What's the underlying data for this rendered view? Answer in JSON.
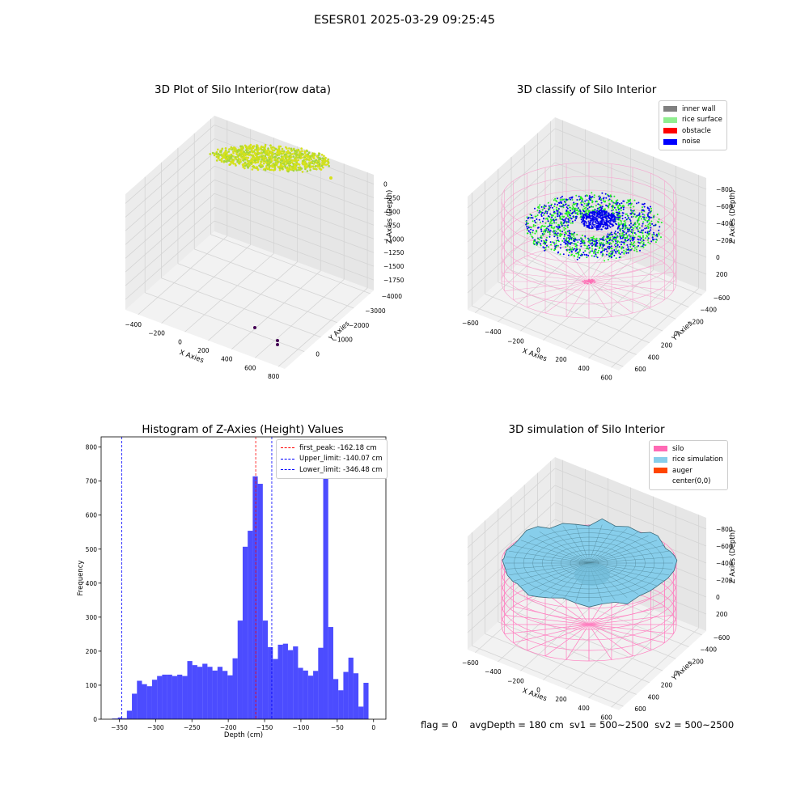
{
  "figure": {
    "title": "ESESR01 2025-03-29 09:25:45",
    "footer": "flag = 0    avgDepth = 180 cm  sv1 = 500~2500  sv2 = 500~2500"
  },
  "panels": {
    "raw": {
      "title": "3D Plot of Silo Interior(row data)",
      "x_label": "X Axies",
      "y_label": "Y Axies",
      "z_label": "Z Axies (Depth)",
      "x_ticks": [
        "−400",
        "−200",
        "0",
        "200",
        "400",
        "600",
        "800"
      ],
      "y_ticks": [
        "0",
        "−1000",
        "−2000",
        "−3000",
        "−4000"
      ],
      "z_ticks": [
        "0",
        "−250",
        "−500",
        "−750",
        "−1000",
        "−1250",
        "−1500",
        "−1750"
      ]
    },
    "classify": {
      "title": "3D classify of Silo Interior",
      "x_label": "X Axies",
      "y_label": "Y Axies",
      "z_label": "Z Axies (Depth)",
      "x_ticks": [
        "−600",
        "−400",
        "−200",
        "0",
        "200",
        "400",
        "600"
      ],
      "y_ticks": [
        "600",
        "400",
        "200",
        "0",
        "−200",
        "−400",
        "−600"
      ],
      "z_ticks": [
        "200",
        "0",
        "−200",
        "−400",
        "−600",
        "−800"
      ],
      "legend": [
        {
          "label": "inner wall",
          "color": "#808080"
        },
        {
          "label": "rice surface",
          "color": "#90ee90"
        },
        {
          "label": "obstacle",
          "color": "#ff0000"
        },
        {
          "label": "noise",
          "color": "#0000ff"
        }
      ]
    },
    "simulation": {
      "title": "3D simulation of Silo Interior",
      "x_label": "X Axies",
      "y_label": "Y Axies",
      "z_label": "Z Axies (Depth)",
      "x_ticks": [
        "−600",
        "−400",
        "−200",
        "0",
        "200",
        "400",
        "600"
      ],
      "y_ticks": [
        "600",
        "400",
        "200",
        "0",
        "−200",
        "−400",
        "−600"
      ],
      "z_ticks": [
        "200",
        "0",
        "−200",
        "−400",
        "−600",
        "−800"
      ],
      "legend": [
        {
          "label": "silo",
          "color": "#ff69b4"
        },
        {
          "label": "rice simulation",
          "color": "#87ceeb"
        },
        {
          "label": "auger",
          "color": "#ff4500"
        },
        {
          "label": "center(0,0)",
          "color": ""
        }
      ]
    }
  },
  "chart_data": {
    "type": "bar",
    "title": "Histogram of Z-Axies (Height) Values",
    "xlabel": "Depth (cm)",
    "ylabel": "Frequency",
    "xlim": [
      -375,
      17
    ],
    "ylim": [
      0,
      830
    ],
    "x_ticks": [
      -350,
      -300,
      -250,
      -200,
      -150,
      -100,
      -50,
      0
    ],
    "x_tick_labels": [
      "−350",
      "−300",
      "−250",
      "−200",
      "−150",
      "−100",
      "−50",
      "0"
    ],
    "y_ticks": [
      0,
      100,
      200,
      300,
      400,
      500,
      600,
      700,
      800
    ],
    "bin_width": 6.93,
    "bin_start": -346.48,
    "values": [
      3,
      25,
      75,
      113,
      103,
      97,
      116,
      127,
      131,
      131,
      127,
      131,
      127,
      171,
      159,
      154,
      163,
      154,
      143,
      154,
      142,
      129,
      179,
      290,
      507,
      554,
      714,
      692,
      290,
      212,
      177,
      219,
      222,
      203,
      214,
      151,
      143,
      128,
      142,
      210,
      787,
      271,
      118,
      85,
      139,
      181,
      135,
      37,
      107
    ],
    "pre_values": [
      {
        "x": -360,
        "width": 8,
        "value": 2
      },
      {
        "x": -352,
        "width": 5.5,
        "value": 5
      }
    ],
    "color": "#0000ff",
    "lines": [
      {
        "label": "first_peak: -162.18 cm",
        "x": -162.18,
        "color": "#ff0000"
      },
      {
        "label": "Upper_limit: -140.07 cm",
        "x": -140.07,
        "color": "#0000ff"
      },
      {
        "label": "Lower_limit: -346.48 cm",
        "x": -346.48,
        "color": "#0000ff"
      }
    ],
    "legend_position": "upper right"
  }
}
